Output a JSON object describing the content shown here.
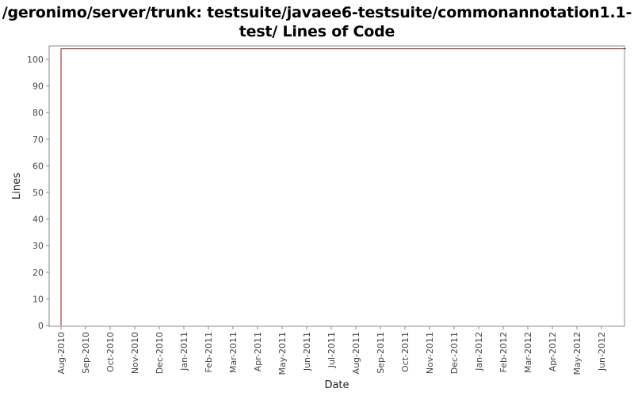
{
  "chart_data": {
    "type": "line",
    "title_line1": "/geronimo/server/trunk: testsuite/javaee6-testsuite/commonannotation1.1-",
    "title_line2": "test/ Lines of Code",
    "xlabel": "Date",
    "ylabel": "Lines",
    "ylim": [
      0,
      104
    ],
    "yticks": [
      0,
      10,
      20,
      30,
      40,
      50,
      60,
      70,
      80,
      90,
      100
    ],
    "xtick_labels": [
      "Aug-2010",
      "Sep-2010",
      "Oct-2010",
      "Nov-2010",
      "Dec-2010",
      "Jan-2011",
      "Feb-2011",
      "Mar-2011",
      "Apr-2011",
      "May-2011",
      "Jun-2011",
      "Jul-2011",
      "Aug-2011",
      "Sep-2011",
      "Oct-2011",
      "Nov-2011",
      "Dec-2011",
      "Jan-2012",
      "Feb-2012",
      "Mar-2012",
      "Apr-2012",
      "May-2012",
      "Jun-2012"
    ],
    "grid": false,
    "series": [
      {
        "color": "#8b1a1a",
        "x": [
          "2010-08-01",
          "2010-08-01",
          "2012-07-01"
        ],
        "y": [
          0,
          104,
          104
        ]
      }
    ]
  }
}
